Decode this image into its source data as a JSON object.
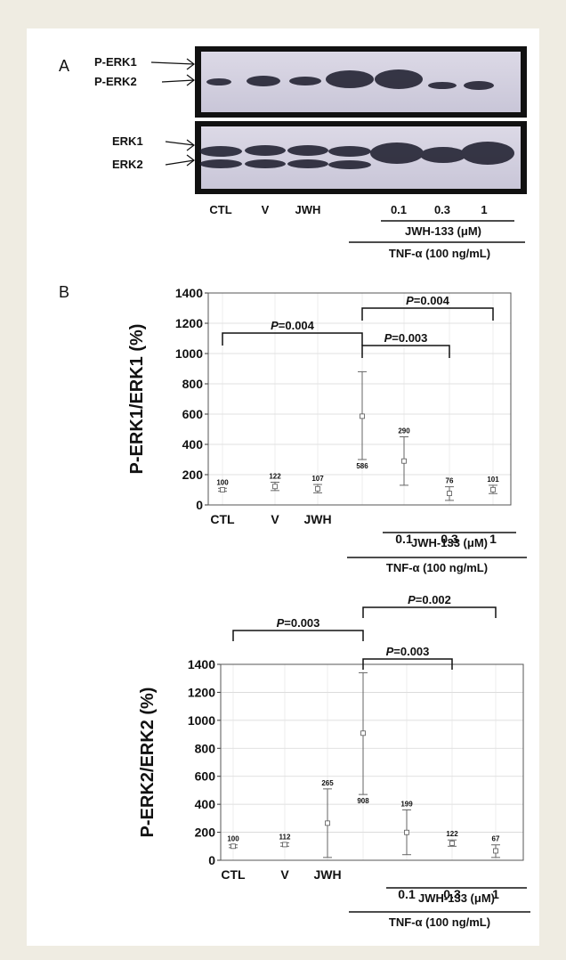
{
  "panel_a": {
    "label": "A",
    "top_markers": [
      "P-ERK1",
      "P-ERK2"
    ],
    "bottom_markers": [
      "ERK1",
      "ERK2"
    ],
    "lanes": [
      "CTL",
      "V",
      "JWH",
      "",
      "0.1",
      "0.3",
      "1"
    ],
    "drug_label": "JWH-133 (μM)",
    "tnf_label": "TNF-α (100 ng/mL)"
  },
  "panel_b": {
    "label": "B"
  },
  "chart_data": [
    {
      "type": "scatter",
      "title": "",
      "ylabel": "P-ERK1/ERK1 (%)",
      "ylim": [
        0,
        1400
      ],
      "yticks": [
        0,
        200,
        400,
        600,
        800,
        1000,
        1200,
        1400
      ],
      "grid": true,
      "categories": [
        "CTL",
        "V",
        "JWH",
        "",
        "0.1",
        "0.3",
        "1"
      ],
      "values": [
        100,
        122,
        107,
        586,
        290,
        76,
        101
      ],
      "value_labels": [
        "100",
        "122",
        "107",
        "586",
        "290",
        "76",
        "101"
      ],
      "error_low": [
        90,
        95,
        80,
        300,
        130,
        30,
        75
      ],
      "error_high": [
        110,
        150,
        135,
        880,
        450,
        120,
        130
      ],
      "drug_label": "JWH-133 (μM)",
      "tnf_label": "TNF-α (100 ng/mL)",
      "annotations": [
        {
          "text": "P=0.004",
          "from": 0,
          "to": 3
        },
        {
          "text": "P=0.004",
          "from": 3,
          "to": 6
        },
        {
          "text": "P=0.003",
          "from": 3,
          "to": 5
        }
      ]
    },
    {
      "type": "scatter",
      "title": "",
      "ylabel": "P-ERK2/ERK2 (%)",
      "ylim": [
        0,
        1400
      ],
      "yticks": [
        0,
        200,
        400,
        600,
        800,
        1000,
        1200,
        1400
      ],
      "grid": true,
      "categories": [
        "CTL",
        "V",
        "JWH",
        "",
        "0.1",
        "0.3",
        "1"
      ],
      "values": [
        100,
        112,
        265,
        908,
        199,
        122,
        67
      ],
      "value_labels": [
        "100",
        "112",
        "265",
        "908",
        "199",
        "122",
        "67"
      ],
      "error_low": [
        90,
        100,
        20,
        470,
        40,
        100,
        20
      ],
      "error_high": [
        110,
        125,
        510,
        1340,
        360,
        145,
        110
      ],
      "drug_label": "JWH-133 (μM)",
      "tnf_label": "TNF-α (100 ng/mL)",
      "annotations": [
        {
          "text": "P=0.003",
          "from": 0,
          "to": 3
        },
        {
          "text": "P=0.002",
          "from": 3,
          "to": 6
        },
        {
          "text": "P=0.003",
          "from": 3,
          "to": 5
        }
      ]
    }
  ]
}
